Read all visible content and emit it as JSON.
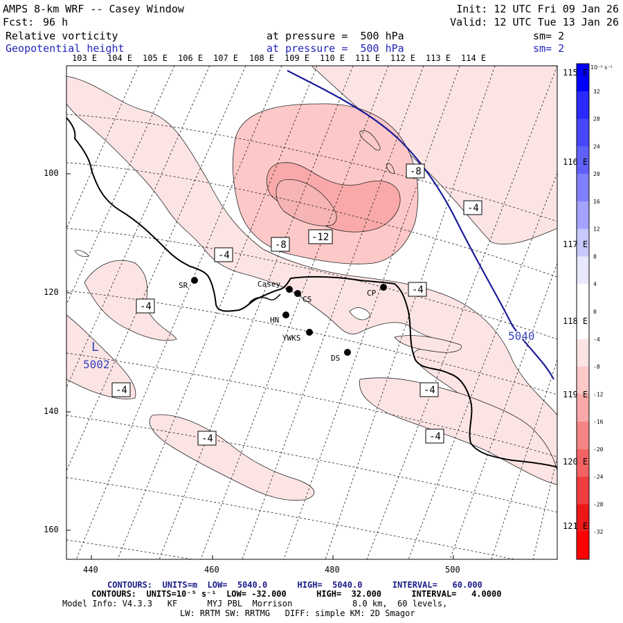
{
  "header": {
    "title_line": "AMPS 8-km WRF -- Casey Window",
    "fcst_label": "Fcst:",
    "fcst_value": "96 h",
    "init": "Init: 12 UTC Fri 09 Jan 26",
    "valid": "Valid: 12 UTC Tue 13 Jan 26",
    "field1": {
      "name": "Relative vorticity",
      "level": "at pressure =  500 hPa",
      "sm": "sm= 2"
    },
    "field2": {
      "name": "Geopotential height",
      "level": "at pressure =  500 hPa",
      "sm": "sm= 2"
    }
  },
  "colors": {
    "text": "#000000",
    "field2_text": "#2222bb",
    "height_contour": "#1a1a99",
    "low_label": "#3344bb"
  },
  "longitude_labels_top": [
    "103 E",
    "104 E",
    "105 E",
    "106 E",
    "107 E",
    "108 E",
    "109 E",
    "110 E",
    "111 E",
    "112 E",
    "113 E",
    "114 E"
  ],
  "longitude_labels_right": [
    "115 E",
    "116 E",
    "117 E",
    "118 E",
    "119 E",
    "120 E",
    "121 E"
  ],
  "y_axis": {
    "ticks": [
      "100",
      "120",
      "140",
      "160"
    ]
  },
  "x_axis": {
    "ticks": [
      "440",
      "460",
      "480",
      "500"
    ]
  },
  "stations": [
    {
      "id": "SR",
      "label": "SR"
    },
    {
      "id": "Casey",
      "label": "Casey"
    },
    {
      "id": "CS",
      "label": "CS"
    },
    {
      "id": "HN",
      "label": "HN"
    },
    {
      "id": "YWKS",
      "label": "YWKS"
    },
    {
      "id": "DS",
      "label": "DS"
    },
    {
      "id": "CP",
      "label": "CP"
    }
  ],
  "contour_labels": {
    "vorticity": [
      "-8",
      "-4",
      "-4",
      "-8",
      "-12",
      "-4",
      "-4",
      "-4",
      "-4",
      "-4",
      "-4"
    ],
    "height": "5040"
  },
  "low_center": {
    "symbol": "L",
    "value": "5002"
  },
  "colorbar": {
    "units": "10⁻⁵ s⁻¹",
    "labels": [
      "32",
      "28",
      "24",
      "20",
      "16",
      "12",
      "8",
      "4",
      "0",
      "-4",
      "-8",
      "-12",
      "-16",
      "-20",
      "-24",
      "-28",
      "-32"
    ],
    "colors": [
      "#0000ff",
      "#2a2aff",
      "#4646ff",
      "#6060ff",
      "#8080ff",
      "#a3a3ff",
      "#c8c8ff",
      "#e8e8ff",
      "#ffffff",
      "#ffffff",
      "#fde4e4",
      "#fcc8c8",
      "#f9a9a9",
      "#f68686",
      "#f36262",
      "#f03d3d",
      "#ec1818",
      "#ff0000"
    ]
  },
  "footer": {
    "line1": "CONTOURS:  UNITS=m  LOW=  5040.0      HIGH=  5040.0      INTERVAL=   60.000",
    "line2": "CONTOURS:  UNITS=10⁻⁵ s⁻¹  LOW= -32.000      HIGH=  32.000      INTERVAL=   4.0000",
    "line3": "Model Info: V4.3.3   KF      MYJ PBL  Morrison            8.0 km,  60 levels,",
    "line4": "LW: RRTM SW: RRTMG   DIFF: simple KM: 2D Smagor"
  }
}
